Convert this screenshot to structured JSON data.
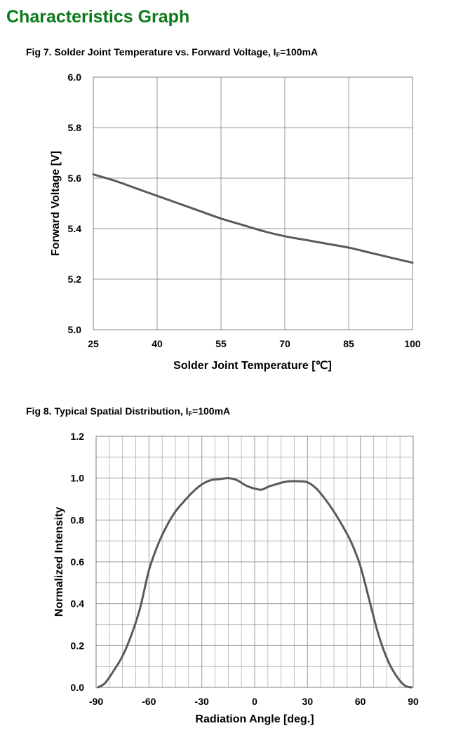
{
  "page": {
    "title": "Characteristics Graph",
    "title_color": "#0b7a1a"
  },
  "figures": [
    {
      "caption": "Fig 7. Solder Joint Temperature vs. Forward Voltage, I",
      "caption_sub": "F",
      "caption_tail": "=100mA"
    },
    {
      "caption": "Fig 8. Typical Spatial Distribution, I",
      "caption_sub": "F",
      "caption_tail": "=100mA"
    }
  ],
  "chart_data": [
    {
      "type": "line",
      "xlabel": "Solder Joint Temperature  [℃]",
      "ylabel": "Forward Voltage [V]",
      "xlim": [
        25,
        100
      ],
      "ylim": [
        5.0,
        6.0
      ],
      "xticks": [
        25,
        40,
        55,
        70,
        85,
        100
      ],
      "yticks": [
        5.0,
        5.2,
        5.4,
        5.6,
        5.8,
        6.0
      ],
      "xtick_labels": [
        "25",
        "40",
        "55",
        "70",
        "85",
        "100"
      ],
      "ytick_labels": [
        "5.0",
        "5.2",
        "5.4",
        "5.6",
        "5.8",
        "6.0"
      ],
      "grid": true,
      "line_color": "#5a5a5a",
      "series": [
        {
          "x": [
            25,
            30,
            35,
            40,
            45,
            50,
            55,
            60,
            65,
            70,
            75,
            80,
            85,
            90,
            95,
            100
          ],
          "y": [
            5.615,
            5.59,
            5.56,
            5.53,
            5.5,
            5.47,
            5.44,
            5.415,
            5.39,
            5.37,
            5.355,
            5.34,
            5.325,
            5.305,
            5.285,
            5.265
          ]
        }
      ]
    },
    {
      "type": "line",
      "xlabel": "Radiation Angle [deg.]",
      "ylabel": "Normalized Intensity",
      "xlim": [
        -90,
        90
      ],
      "ylim": [
        0.0,
        1.2
      ],
      "xticks": [
        -90,
        -60,
        -30,
        0,
        30,
        60,
        90
      ],
      "yticks": [
        0.0,
        0.2,
        0.4,
        0.6,
        0.8,
        1.0,
        1.2
      ],
      "xtick_labels": [
        "-90",
        "-60",
        "-30",
        "0",
        "30",
        "60",
        "90"
      ],
      "ytick_labels": [
        "0.0",
        "0.2",
        "0.4",
        "0.6",
        "0.8",
        "1.0",
        "1.2"
      ],
      "grid": true,
      "line_color": "#5a5a5a",
      "series": [
        {
          "x": [
            -89,
            -85,
            -80,
            -75,
            -70,
            -65,
            -60,
            -55,
            -50,
            -45,
            -40,
            -35,
            -30,
            -25,
            -20,
            -15,
            -10,
            -5,
            0,
            4,
            8,
            12,
            16,
            20,
            25,
            30,
            35,
            40,
            45,
            50,
            55,
            60,
            65,
            70,
            75,
            80,
            85,
            89
          ],
          "y": [
            0.0,
            0.02,
            0.08,
            0.15,
            0.25,
            0.38,
            0.56,
            0.68,
            0.77,
            0.84,
            0.89,
            0.935,
            0.97,
            0.99,
            0.995,
            1.0,
            0.99,
            0.965,
            0.95,
            0.945,
            0.96,
            0.97,
            0.98,
            0.985,
            0.985,
            0.98,
            0.95,
            0.9,
            0.84,
            0.77,
            0.69,
            0.58,
            0.42,
            0.26,
            0.14,
            0.06,
            0.01,
            0.0
          ]
        }
      ]
    }
  ]
}
